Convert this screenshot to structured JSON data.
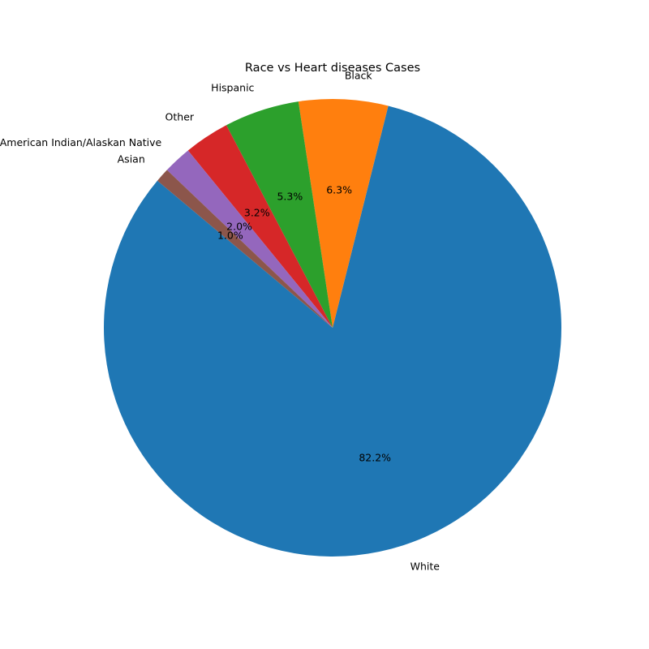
{
  "chart_data": {
    "type": "pie",
    "title": "Race vs Heart diseases Cases",
    "categories": [
      "White",
      "Black",
      "Hispanic",
      "Other",
      "American Indian/Alaskan Native",
      "Asian"
    ],
    "values": [
      82.2,
      6.3,
      5.3,
      3.2,
      2.0,
      1.0
    ],
    "value_labels": [
      "82.2%",
      "6.3%",
      "5.3%",
      "3.2%",
      "2.0%",
      "1.0%"
    ],
    "colors": [
      "#1f77b4",
      "#ff7f0e",
      "#2ca02c",
      "#d62728",
      "#9467bd",
      "#8c564b"
    ],
    "start_angle": 140,
    "direction": "counterclockwise"
  }
}
